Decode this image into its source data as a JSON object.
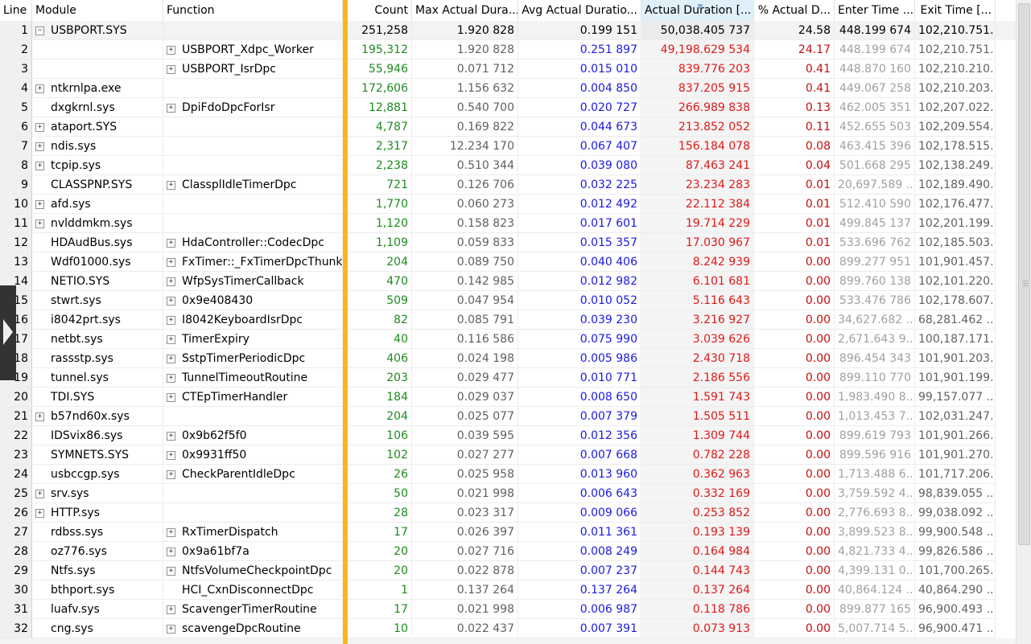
{
  "columns": {
    "line": "Line",
    "module": "Module",
    "function": "Function",
    "count": "Count",
    "max": "Max Actual Dura...",
    "avg": "Avg Actual Duratio...",
    "actual": "Actual Duration [...",
    "pct": "% Actual D...",
    "enter": "Enter Time ...",
    "exit": "Exit Time [..."
  },
  "rows": [
    {
      "line": "1",
      "expand": "minus",
      "module": "USBPORT.SYS",
      "fexpand": "",
      "func": "",
      "count": "251,258",
      "max": "1.920 828",
      "avg": "0.199 151",
      "actual": "50,038.405 737",
      "pct": "24.58",
      "enter": "448.199 674",
      "exit": "102,210.751..."
    },
    {
      "line": "2",
      "expand": "",
      "module": "",
      "fexpand": "plus",
      "func": "USBPORT_Xdpc_Worker",
      "count": "195,312",
      "max": "1.920 828",
      "avg": "0.251 897",
      "actual": "49,198.629 534",
      "pct": "24.17",
      "enter": "448.199 674",
      "exit": "102,210.751..."
    },
    {
      "line": "3",
      "expand": "",
      "module": "",
      "fexpand": "plus",
      "func": "USBPORT_IsrDpc",
      "count": "55,946",
      "max": "0.071 712",
      "avg": "0.015 010",
      "actual": "839.776 203",
      "pct": "0.41",
      "enter": "448.870 160",
      "exit": "102,210.210..."
    },
    {
      "line": "4",
      "expand": "plus",
      "module": "ntkrnlpa.exe",
      "fexpand": "",
      "func": "",
      "count": "172,606",
      "max": "1.156 632",
      "avg": "0.004 850",
      "actual": "837.205 915",
      "pct": "0.41",
      "enter": "449.067 258",
      "exit": "102,210.203..."
    },
    {
      "line": "5",
      "expand": "",
      "module": "dxgkrnl.sys",
      "fexpand": "plus",
      "func": "DpiFdoDpcForIsr",
      "count": "12,881",
      "max": "0.540 700",
      "avg": "0.020 727",
      "actual": "266.989 838",
      "pct": "0.13",
      "enter": "462.005 351",
      "exit": "102,207.022..."
    },
    {
      "line": "6",
      "expand": "plus",
      "module": "ataport.SYS",
      "fexpand": "",
      "func": "",
      "count": "4,787",
      "max": "0.169 822",
      "avg": "0.044 673",
      "actual": "213.852 052",
      "pct": "0.11",
      "enter": "452.655 503",
      "exit": "102,209.554..."
    },
    {
      "line": "7",
      "expand": "plus",
      "module": "ndis.sys",
      "fexpand": "",
      "func": "",
      "count": "2,317",
      "max": "12.234 170",
      "avg": "0.067 407",
      "actual": "156.184 078",
      "pct": "0.08",
      "enter": "463.415 396",
      "exit": "102,178.515..."
    },
    {
      "line": "8",
      "expand": "plus",
      "module": "tcpip.sys",
      "fexpand": "",
      "func": "",
      "count": "2,238",
      "max": "0.510 344",
      "avg": "0.039 080",
      "actual": "87.463 241",
      "pct": "0.04",
      "enter": "501.668 295",
      "exit": "102,138.249..."
    },
    {
      "line": "9",
      "expand": "",
      "module": "CLASSPNP.SYS",
      "fexpand": "plus",
      "func": "ClassplIdleTimerDpc",
      "count": "721",
      "max": "0.126 706",
      "avg": "0.032 225",
      "actual": "23.234 283",
      "pct": "0.01",
      "enter": "20,697.589 ...",
      "exit": "102,189.490..."
    },
    {
      "line": "10",
      "expand": "plus",
      "module": "afd.sys",
      "fexpand": "",
      "func": "",
      "count": "1,770",
      "max": "0.060 273",
      "avg": "0.012 492",
      "actual": "22.112 384",
      "pct": "0.01",
      "enter": "512.410 590",
      "exit": "102,176.477..."
    },
    {
      "line": "11",
      "expand": "plus",
      "module": "nvlddmkm.sys",
      "fexpand": "",
      "func": "",
      "count": "1,120",
      "max": "0.158 823",
      "avg": "0.017 601",
      "actual": "19.714 229",
      "pct": "0.01",
      "enter": "499.845 137",
      "exit": "102,201.199..."
    },
    {
      "line": "12",
      "expand": "",
      "module": "HDAudBus.sys",
      "fexpand": "plus",
      "func": "HdaController::CodecDpc",
      "count": "1,109",
      "max": "0.059 833",
      "avg": "0.015 357",
      "actual": "17.030 967",
      "pct": "0.01",
      "enter": "533.696 762",
      "exit": "102,185.503..."
    },
    {
      "line": "13",
      "expand": "",
      "module": "Wdf01000.sys",
      "fexpand": "plus",
      "func": "FxTimer::_FxTimerDpcThunk",
      "count": "204",
      "max": "0.089 750",
      "avg": "0.040 406",
      "actual": "8.242 939",
      "pct": "0.00",
      "enter": "899.277 951",
      "exit": "101,901.457..."
    },
    {
      "line": "14",
      "expand": "",
      "module": "NETIO.SYS",
      "fexpand": "plus",
      "func": "WfpSysTimerCallback",
      "count": "470",
      "max": "0.142 985",
      "avg": "0.012 982",
      "actual": "6.101 681",
      "pct": "0.00",
      "enter": "899.760 138",
      "exit": "102,101.220..."
    },
    {
      "line": "15",
      "expand": "",
      "module": "stwrt.sys",
      "fexpand": "plus",
      "func": "0x9e408430",
      "count": "509",
      "max": "0.047 954",
      "avg": "0.010 052",
      "actual": "5.116 643",
      "pct": "0.00",
      "enter": "533.476 786",
      "exit": "102,178.607..."
    },
    {
      "line": "16",
      "expand": "",
      "module": "i8042prt.sys",
      "fexpand": "plus",
      "func": "I8042KeyboardIsrDpc",
      "count": "82",
      "max": "0.085 791",
      "avg": "0.039 230",
      "actual": "3.216 927",
      "pct": "0.00",
      "enter": "34,627.682 ...",
      "exit": "68,281.462 ..."
    },
    {
      "line": "17",
      "expand": "",
      "module": "netbt.sys",
      "fexpand": "plus",
      "func": "TimerExpiry",
      "count": "40",
      "max": "0.116 586",
      "avg": "0.075 990",
      "actual": "3.039 626",
      "pct": "0.00",
      "enter": "2,671.643 9...",
      "exit": "100,187.171..."
    },
    {
      "line": "18",
      "expand": "",
      "module": "rassstp.sys",
      "fexpand": "plus",
      "func": "SstpTimerPeriodicDpc",
      "count": "406",
      "max": "0.024 198",
      "avg": "0.005 986",
      "actual": "2.430 718",
      "pct": "0.00",
      "enter": "896.454 343",
      "exit": "101,901.203..."
    },
    {
      "line": "19",
      "expand": "",
      "module": "tunnel.sys",
      "fexpand": "plus",
      "func": "TunnelTimeoutRoutine",
      "count": "203",
      "max": "0.029 477",
      "avg": "0.010 771",
      "actual": "2.186 556",
      "pct": "0.00",
      "enter": "899.110 770",
      "exit": "101,901.199..."
    },
    {
      "line": "20",
      "expand": "",
      "module": "TDI.SYS",
      "fexpand": "plus",
      "func": "CTEpTimerHandler",
      "count": "184",
      "max": "0.029 037",
      "avg": "0.008 650",
      "actual": "1.591 743",
      "pct": "0.00",
      "enter": "1,983.490 8...",
      "exit": "99,157.077 ..."
    },
    {
      "line": "21",
      "expand": "plus",
      "module": "b57nd60x.sys",
      "fexpand": "",
      "func": "",
      "count": "204",
      "max": "0.025 077",
      "avg": "0.007 379",
      "actual": "1.505 511",
      "pct": "0.00",
      "enter": "1,013.453 7...",
      "exit": "102,031.247..."
    },
    {
      "line": "22",
      "expand": "",
      "module": "IDSvix86.sys",
      "fexpand": "plus",
      "func": "0x9b62f5f0",
      "count": "106",
      "max": "0.039 595",
      "avg": "0.012 356",
      "actual": "1.309 744",
      "pct": "0.00",
      "enter": "899.619 793",
      "exit": "101,901.266..."
    },
    {
      "line": "23",
      "expand": "",
      "module": "SYMNETS.SYS",
      "fexpand": "plus",
      "func": "0x9931ff50",
      "count": "102",
      "max": "0.027 277",
      "avg": "0.007 668",
      "actual": "0.782 228",
      "pct": "0.00",
      "enter": "899.596 916",
      "exit": "101,901.270..."
    },
    {
      "line": "24",
      "expand": "",
      "module": "usbccgp.sys",
      "fexpand": "plus",
      "func": "CheckParentIdleDpc",
      "count": "26",
      "max": "0.025 958",
      "avg": "0.013 960",
      "actual": "0.362 963",
      "pct": "0.00",
      "enter": "1,713.488 6...",
      "exit": "101,717.206..."
    },
    {
      "line": "25",
      "expand": "plus",
      "module": "srv.sys",
      "fexpand": "",
      "func": "",
      "count": "50",
      "max": "0.021 998",
      "avg": "0.006 643",
      "actual": "0.332 169",
      "pct": "0.00",
      "enter": "3,759.592 4...",
      "exit": "98,839.055 ..."
    },
    {
      "line": "26",
      "expand": "plus",
      "module": "HTTP.sys",
      "fexpand": "",
      "func": "",
      "count": "28",
      "max": "0.023 317",
      "avg": "0.009 066",
      "actual": "0.253 852",
      "pct": "0.00",
      "enter": "2,776.693 8...",
      "exit": "99,038.092 ..."
    },
    {
      "line": "27",
      "expand": "",
      "module": "rdbss.sys",
      "fexpand": "plus",
      "func": "RxTimerDispatch",
      "count": "17",
      "max": "0.026 397",
      "avg": "0.011 361",
      "actual": "0.193 139",
      "pct": "0.00",
      "enter": "3,899.523 8...",
      "exit": "99,900.548 ..."
    },
    {
      "line": "28",
      "expand": "",
      "module": "oz776.sys",
      "fexpand": "plus",
      "func": "0x9a61bf7a",
      "count": "20",
      "max": "0.027 716",
      "avg": "0.008 249",
      "actual": "0.164 984",
      "pct": "0.00",
      "enter": "4,821.733 4...",
      "exit": "99,826.586 ..."
    },
    {
      "line": "29",
      "expand": "",
      "module": "Ntfs.sys",
      "fexpand": "plus",
      "func": "NtfsVolumeCheckpointDpc",
      "count": "20",
      "max": "0.022 878",
      "avg": "0.007 237",
      "actual": "0.144 743",
      "pct": "0.00",
      "enter": "4,399.131 0...",
      "exit": "101,700.265..."
    },
    {
      "line": "30",
      "expand": "",
      "module": "bthport.sys",
      "fexpand": "",
      "func": "HCI_CxnDisconnectDpc",
      "count": "1",
      "max": "0.137 264",
      "avg": "0.137 264",
      "actual": "0.137 264",
      "pct": "0.00",
      "enter": "40,864.124 ...",
      "exit": "40,864.290 ..."
    },
    {
      "line": "31",
      "expand": "",
      "module": "luafv.sys",
      "fexpand": "plus",
      "func": "ScavengerTimerRoutine",
      "count": "17",
      "max": "0.021 998",
      "avg": "0.006 987",
      "actual": "0.118 786",
      "pct": "0.00",
      "enter": "899.877 165",
      "exit": "96,900.493 ..."
    },
    {
      "line": "32",
      "expand": "",
      "module": "cng.sys",
      "fexpand": "plus",
      "func": "scavengeDpcRoutine",
      "count": "10",
      "max": "0.022 437",
      "avg": "0.007 391",
      "actual": "0.073 913",
      "pct": "0.00",
      "enter": "5,007.714 5...",
      "exit": "96,900.471 ..."
    }
  ],
  "colors": {
    "orange_splitter": "#f6b81c",
    "count_green": "#1e8a1e",
    "avg_blue": "#1a1ae0",
    "actual_red": "#e01818",
    "sorted_header": "#dff0fb"
  },
  "icons": {
    "expand": "plus-box-icon",
    "collapse": "minus-box-icon",
    "sort": "sort-descending-icon"
  }
}
